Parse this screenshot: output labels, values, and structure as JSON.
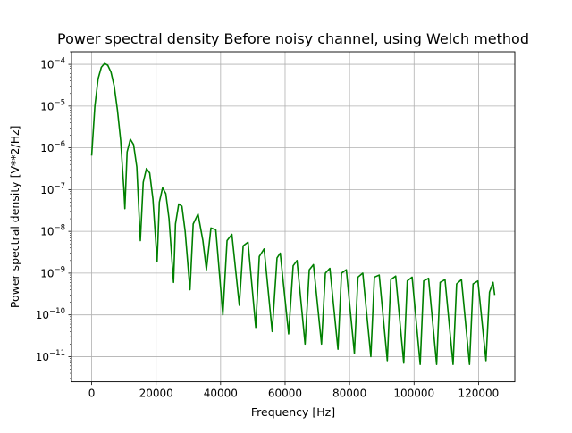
{
  "chart_data": {
    "type": "line",
    "title": "Power spectral density Before noisy channel, using Welch method",
    "xlabel": "Frequency [Hz]",
    "ylabel": "Power spectral density [V**2/Hz]",
    "xlim": [
      -6250,
      131250
    ],
    "ylim": [
      2.5e-12,
      0.0002
    ],
    "yscale": "log",
    "grid": true,
    "line_color": "#008000",
    "x_ticks": [
      0,
      20000,
      40000,
      60000,
      80000,
      100000,
      120000
    ],
    "x_tick_labels": [
      "0",
      "20000",
      "40000",
      "60000",
      "80000",
      "100000",
      "120000"
    ],
    "y_ticks": [
      1e-11,
      1e-10,
      1e-09,
      1e-08,
      1e-07,
      1e-06,
      1e-05,
      0.0001
    ],
    "y_tick_bases": [
      "10",
      "10",
      "10",
      "10",
      "10",
      "10",
      "10",
      "10"
    ],
    "y_tick_exps": [
      "−11",
      "−10",
      "−9",
      "−8",
      "−7",
      "−6",
      "−5",
      "−4"
    ],
    "series": [
      {
        "x": [
          0,
          1000,
          2000,
          3000,
          4000,
          5000,
          6000,
          7000,
          8000,
          9000,
          10000,
          10300,
          11000,
          12000,
          13000,
          14000,
          15100,
          16000,
          17000,
          18000,
          19000,
          20300,
          21000,
          22000,
          23000,
          24000,
          25400,
          26000,
          27000,
          28000,
          29000,
          30500,
          31500,
          33000,
          34500,
          35600,
          37000,
          38500,
          40700,
          42000,
          43500,
          45800,
          47000,
          48500,
          50900,
          52000,
          53500,
          56000,
          57500,
          58500,
          61100,
          62500,
          63700,
          66200,
          67500,
          68800,
          71300,
          72500,
          73900,
          76400,
          77500,
          79000,
          81500,
          82600,
          84100,
          86600,
          87700,
          89200,
          91700,
          92800,
          94300,
          96800,
          97900,
          99400,
          101900,
          103000,
          104500,
          107000,
          108100,
          109600,
          112100,
          113200,
          114700,
          117200,
          118300,
          119800,
          122300,
          123400,
          124500,
          125000
        ],
        "y": [
          6.5e-07,
          1e-05,
          4.5e-05,
          8.5e-05,
          0.000105,
          9.5e-05,
          6.5e-05,
          3e-05,
          8e-06,
          1.5e-06,
          1e-07,
          3.5e-08,
          8e-07,
          1.6e-06,
          1.2e-06,
          3.5e-07,
          6e-09,
          1.5e-07,
          3.2e-07,
          2.5e-07,
          6e-08,
          1.9e-09,
          5e-08,
          1.1e-07,
          8e-08,
          2e-08,
          6e-10,
          1.5e-08,
          4.5e-08,
          4e-08,
          1e-08,
          4e-10,
          1.5e-08,
          2.6e-08,
          6e-09,
          1.2e-09,
          1.2e-08,
          1.1e-08,
          1e-10,
          6e-09,
          8.5e-09,
          1.7e-10,
          4.5e-09,
          5.5e-09,
          5e-11,
          2.5e-09,
          3.8e-09,
          4e-11,
          2.3e-09,
          3e-09,
          3.5e-11,
          1.5e-09,
          2e-09,
          2e-11,
          1.2e-09,
          1.6e-09,
          2e-11,
          1e-09,
          1.3e-09,
          1.5e-11,
          1e-09,
          1.2e-09,
          1.2e-11,
          8e-10,
          1e-09,
          1e-11,
          8e-10,
          9e-10,
          8e-12,
          7e-10,
          8.5e-10,
          7e-12,
          6.5e-10,
          8e-10,
          6.5e-12,
          6.5e-10,
          7.5e-10,
          6.5e-12,
          6e-10,
          7e-10,
          6.5e-12,
          5.5e-10,
          7e-10,
          6.5e-12,
          5.5e-10,
          6.5e-10,
          8e-12,
          3.5e-10,
          6e-10,
          3e-10
        ]
      }
    ]
  }
}
